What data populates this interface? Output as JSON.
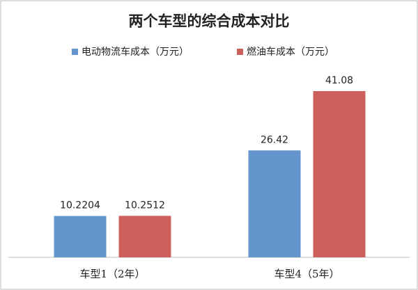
{
  "chart_data": {
    "type": "bar",
    "title": "两个车型的综合成本对比",
    "categories": [
      "车型1（2年）",
      "车型4（5年）"
    ],
    "series": [
      {
        "name": "电动物流车成本（万元）",
        "color": "#6495cc",
        "values": [
          10.2204,
          26.42
        ]
      },
      {
        "name": "燃油车成本（万元）",
        "color": "#cc605c",
        "values": [
          10.2512,
          41.08
        ]
      }
    ]
  }
}
